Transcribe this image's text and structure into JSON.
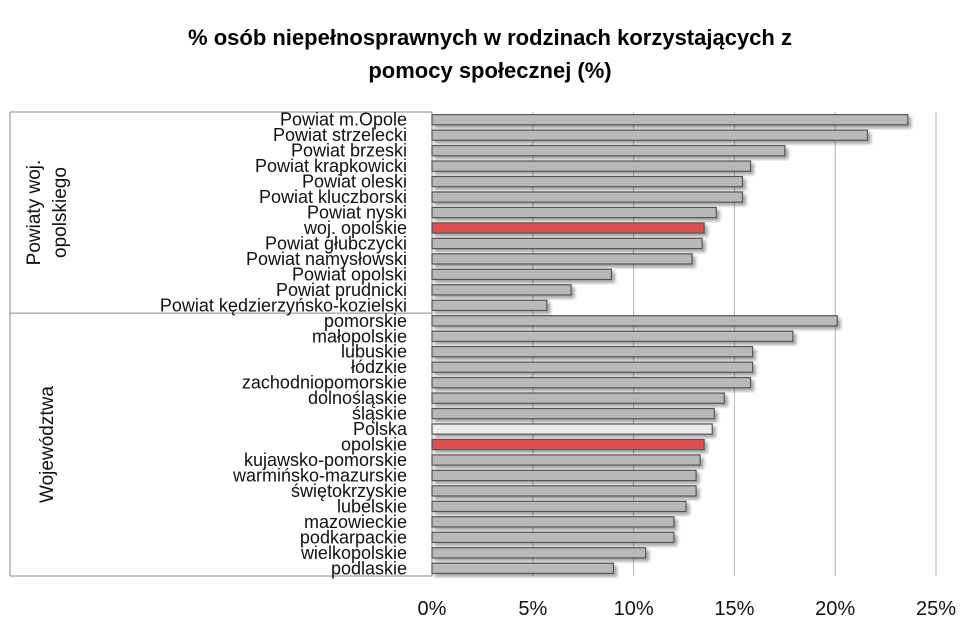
{
  "chart_data": {
    "type": "bar",
    "orientation": "horizontal",
    "title": "% osób niepełnosprawnych w rodzinach korzystających z pomocy społecznej (%)",
    "title_lines": [
      "% osób niepełnosprawnych w rodzinach korzystających z",
      "pomocy społecznej (%)"
    ],
    "xlim": [
      0,
      25
    ],
    "x_ticks": [
      "0%",
      "5%",
      "10%",
      "15%",
      "20%",
      "25%"
    ],
    "grid": true,
    "colors": {
      "default": "#b9b9b9",
      "opolskie": "#e05050",
      "polska": "#ececec",
      "border": "#555555",
      "grid": "#b5b5b5"
    },
    "groups": [
      {
        "label_lines": [
          "Powiaty woj.",
          "opolskiego"
        ],
        "categories": [
          "Powiat m.Opole",
          "Powiat strzelecki",
          "Powiat brzeski",
          "Powiat krapkowicki",
          "Powiat oleski",
          "Powiat kluczborski",
          "Powiat nyski",
          "woj. opolskie",
          "Powiat głubczycki",
          "Powiat namysłowski",
          "Powiat opolski",
          "Powiat prudnicki",
          "Powiat kędzierzyńsko-kozielski"
        ],
        "values": [
          23.6,
          21.6,
          17.5,
          15.8,
          15.4,
          15.4,
          14.1,
          13.5,
          13.4,
          12.9,
          8.9,
          6.9,
          5.7
        ],
        "highlight": [
          "default",
          "default",
          "default",
          "default",
          "default",
          "default",
          "default",
          "opolskie",
          "default",
          "default",
          "default",
          "default",
          "default"
        ]
      },
      {
        "label_lines": [
          "Województwa"
        ],
        "categories": [
          "pomorskie",
          "małopolskie",
          "lubuskie",
          "łódzkie",
          "zachodniopomorskie",
          "dolnośląskie",
          "śląskie",
          "Polska",
          "opolskie",
          "kujawsko-pomorskie",
          "warmińsko-mazurskie",
          "świętokrzyskie",
          "lubelskie",
          "mazowieckie",
          "podkarpackie",
          "wielkopolskie",
          "podlaskie"
        ],
        "values": [
          20.1,
          17.9,
          15.9,
          15.9,
          15.8,
          14.5,
          14.0,
          13.9,
          13.5,
          13.3,
          13.1,
          13.1,
          12.6,
          12.0,
          12.0,
          10.6,
          9.0
        ],
        "highlight": [
          "default",
          "default",
          "default",
          "default",
          "default",
          "default",
          "default",
          "polska",
          "opolskie",
          "default",
          "default",
          "default",
          "default",
          "default",
          "default",
          "default",
          "default"
        ]
      }
    ]
  }
}
